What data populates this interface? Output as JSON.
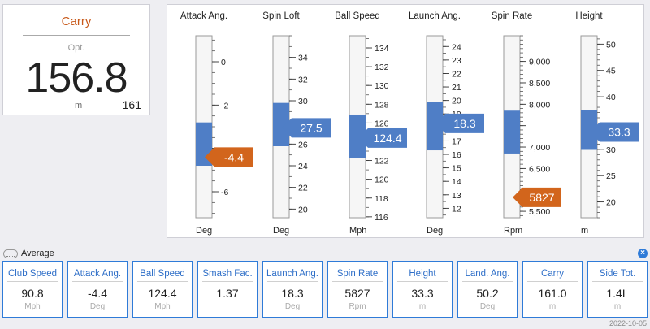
{
  "carry": {
    "title": "Carry",
    "label": "Opt.",
    "value": "156.8",
    "unit": "m",
    "total": "161"
  },
  "gauges": [
    {
      "title": "Attack Ang.",
      "unit": "Deg",
      "ticks": [
        0,
        -2,
        -4,
        -6
      ],
      "tick_labels": [
        "0",
        "-2",
        "",
        "-6"
      ],
      "range": [
        -7.2,
        1.2
      ],
      "band": [
        -4.8,
        -2.8
      ],
      "value": -4.4,
      "value_label": "-4.4",
      "marker_color": "#d2651c",
      "minor_per_major": 4
    },
    {
      "title": "Spin Loft",
      "unit": "Deg",
      "ticks": [
        34,
        32,
        30,
        28,
        26,
        24,
        22,
        20
      ],
      "tick_labels": [
        "34",
        "32",
        "30",
        "",
        "26",
        "24",
        "22",
        "20"
      ],
      "range": [
        19.2,
        36
      ],
      "band": [
        25.8,
        29.8
      ],
      "value": 27.5,
      "value_label": "27.5",
      "marker_color": "#4f7ec6",
      "minor_per_major": 2
    },
    {
      "title": "Ball Speed",
      "unit": "Mph",
      "ticks": [
        134,
        132,
        130,
        128,
        126,
        124,
        122,
        120,
        118,
        116
      ],
      "tick_labels": [
        "134",
        "132",
        "130",
        "128",
        "126",
        "",
        "122",
        "120",
        "118",
        "116"
      ],
      "range": [
        115.9,
        135.3
      ],
      "band": [
        122.3,
        126.9
      ],
      "value": 124.4,
      "value_label": "124.4",
      "marker_color": "#4f7ec6",
      "minor_per_major": 2
    },
    {
      "title": "Launch Ang.",
      "unit": "Deg",
      "ticks": [
        24,
        23,
        22,
        21,
        20,
        19,
        18,
        17,
        16,
        15,
        14,
        13,
        12
      ],
      "tick_labels": [
        "24",
        "23",
        "22",
        "21",
        "20",
        "19",
        "",
        "17",
        "16",
        "15",
        "14",
        "13",
        "12"
      ],
      "range": [
        11.3,
        24.8
      ],
      "band": [
        16.3,
        19.9
      ],
      "value": 18.3,
      "value_label": "18.3",
      "marker_color": "#4f7ec6",
      "minor_per_major": 2
    },
    {
      "title": "Spin Rate",
      "unit": "Rpm",
      "ticks": [
        9000,
        8500,
        8000,
        7500,
        7000,
        6500,
        6000,
        5500
      ],
      "tick_labels": [
        "9,000",
        "8,500",
        "8,000",
        "",
        "7,000",
        "6,500",
        "",
        "5,500"
      ],
      "range": [
        5350,
        9600
      ],
      "band": [
        6850,
        7850
      ],
      "value": 5827,
      "value_label": "5827",
      "marker_color": "#d2651c",
      "minor_per_major": 5
    },
    {
      "title": "Height",
      "unit": "m",
      "ticks": [
        50,
        45,
        40,
        35,
        30,
        25,
        20
      ],
      "tick_labels": [
        "50",
        "45",
        "40",
        "",
        "30",
        "25",
        "20"
      ],
      "range": [
        17,
        51.6
      ],
      "band": [
        29.9,
        37.5
      ],
      "value": 33.3,
      "value_label": "33.3",
      "marker_color": "#4f7ec6",
      "minor_per_major": 5
    }
  ],
  "average": {
    "label": "Average",
    "close_icon": "close-x"
  },
  "metrics": [
    {
      "label": "Club Speed",
      "value": "90.8",
      "unit": "Mph"
    },
    {
      "label": "Attack Ang.",
      "value": "-4.4",
      "unit": "Deg"
    },
    {
      "label": "Ball Speed",
      "value": "124.4",
      "unit": "Mph"
    },
    {
      "label": "Smash Fac.",
      "value": "1.37",
      "unit": ""
    },
    {
      "label": "Launch Ang.",
      "value": "18.3",
      "unit": "Deg"
    },
    {
      "label": "Spin Rate",
      "value": "5827",
      "unit": "Rpm"
    },
    {
      "label": "Height",
      "value": "33.3",
      "unit": "m"
    },
    {
      "label": "Land. Ang.",
      "value": "50.2",
      "unit": "Deg"
    },
    {
      "label": "Carry",
      "value": "161.0",
      "unit": "m"
    },
    {
      "label": "Side Tot.",
      "value": "1.4L",
      "unit": "m"
    }
  ],
  "date": "2022-10-05",
  "colors": {
    "accent_orange": "#d2651c",
    "accent_blue": "#4f7ec6",
    "card_border": "#2f7bd8"
  }
}
